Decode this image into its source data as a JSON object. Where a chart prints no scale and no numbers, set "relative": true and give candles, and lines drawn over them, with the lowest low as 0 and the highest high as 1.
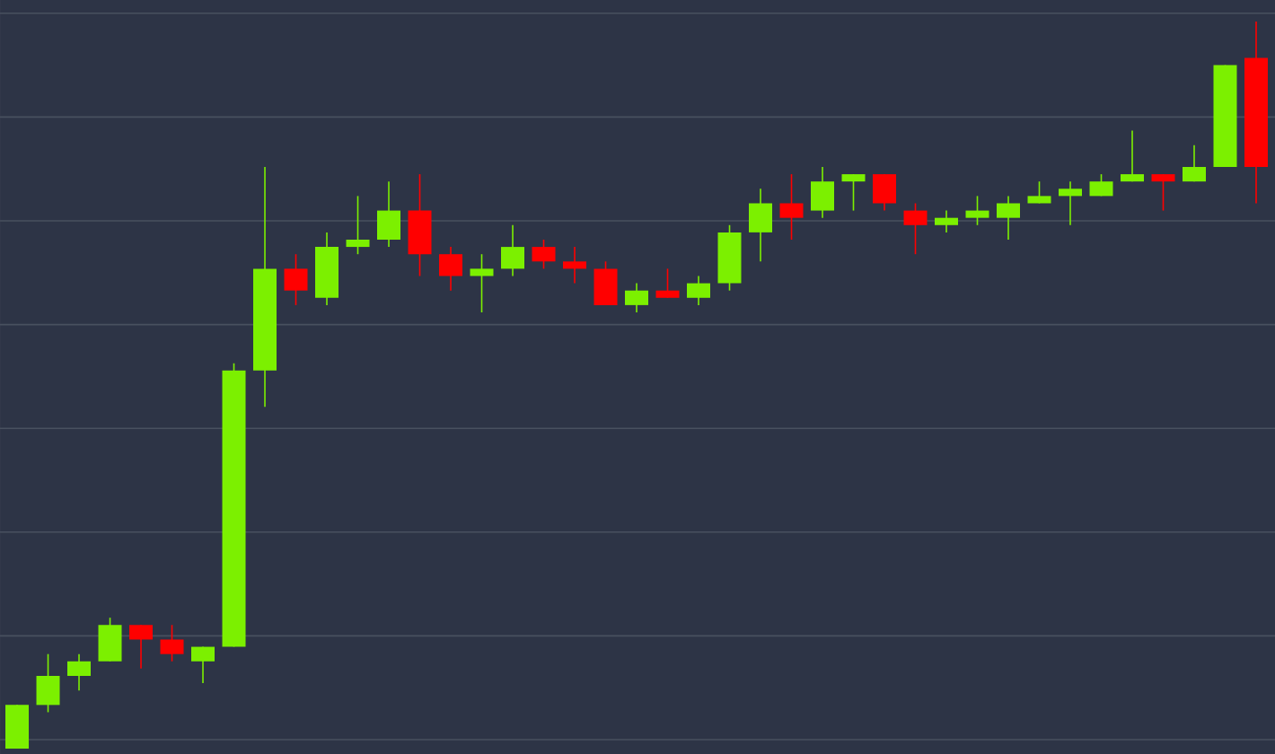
{
  "chart_data": {
    "type": "candlestick",
    "relative": true,
    "grid": "y",
    "categories": [
      null,
      null,
      null,
      null,
      null,
      null,
      null,
      null,
      null,
      null,
      null,
      null,
      null,
      null,
      null,
      null,
      null,
      null,
      null,
      null,
      null,
      null,
      null,
      null,
      null,
      null,
      null,
      null,
      null,
      null,
      null,
      null,
      null,
      null,
      null,
      null,
      null,
      null,
      null,
      null,
      null
    ],
    "ohlc": [
      [
        0.0,
        0.06,
        0.0,
        0.06
      ],
      [
        0.06,
        0.13,
        0.05,
        0.1
      ],
      [
        0.1,
        0.13,
        0.08,
        0.12
      ],
      [
        0.12,
        0.18,
        0.12,
        0.17
      ],
      [
        0.17,
        0.17,
        0.11,
        0.15
      ],
      [
        0.15,
        0.17,
        0.12,
        0.13
      ],
      [
        0.12,
        0.14,
        0.09,
        0.14
      ],
      [
        0.14,
        0.53,
        0.14,
        0.52
      ],
      [
        0.52,
        0.8,
        0.47,
        0.66
      ],
      [
        0.66,
        0.68,
        0.61,
        0.63
      ],
      [
        0.62,
        0.71,
        0.61,
        0.69
      ],
      [
        0.69,
        0.76,
        0.68,
        0.7
      ],
      [
        0.7,
        0.78,
        0.69,
        0.74
      ],
      [
        0.74,
        0.79,
        0.65,
        0.68
      ],
      [
        0.68,
        0.69,
        0.63,
        0.65
      ],
      [
        0.65,
        0.68,
        0.6,
        0.66
      ],
      [
        0.66,
        0.72,
        0.65,
        0.69
      ],
      [
        0.69,
        0.7,
        0.66,
        0.67
      ],
      [
        0.67,
        0.69,
        0.64,
        0.66
      ],
      [
        0.66,
        0.67,
        0.61,
        0.61
      ],
      [
        0.61,
        0.64,
        0.6,
        0.63
      ],
      [
        0.63,
        0.66,
        0.62,
        0.62
      ],
      [
        0.62,
        0.65,
        0.61,
        0.64
      ],
      [
        0.64,
        0.72,
        0.63,
        0.71
      ],
      [
        0.71,
        0.77,
        0.67,
        0.75
      ],
      [
        0.75,
        0.79,
        0.7,
        0.73
      ],
      [
        0.74,
        0.8,
        0.73,
        0.78
      ],
      [
        0.78,
        0.79,
        0.74,
        0.79
      ],
      [
        0.79,
        0.79,
        0.74,
        0.75
      ],
      [
        0.74,
        0.75,
        0.68,
        0.72
      ],
      [
        0.72,
        0.74,
        0.71,
        0.73
      ],
      [
        0.73,
        0.76,
        0.72,
        0.74
      ],
      [
        0.73,
        0.76,
        0.7,
        0.75
      ],
      [
        0.75,
        0.78,
        0.75,
        0.76
      ],
      [
        0.76,
        0.78,
        0.72,
        0.77
      ],
      [
        0.76,
        0.79,
        0.76,
        0.78
      ],
      [
        0.78,
        0.85,
        0.78,
        0.79
      ],
      [
        0.79,
        0.79,
        0.74,
        0.78
      ],
      [
        0.78,
        0.83,
        0.78,
        0.8
      ],
      [
        0.8,
        0.94,
        0.8,
        0.94
      ],
      [
        0.95,
        1.0,
        0.75,
        0.8
      ]
    ],
    "colors": [
      "#7cf000",
      "#7cf000",
      "#7cf000",
      "#7cf000",
      "#ff0000",
      "#ff0000",
      "#7cf000",
      "#7cf000",
      "#7cf000",
      "#ff0000",
      "#7cf000",
      "#7cf000",
      "#7cf000",
      "#ff0000",
      "#ff0000",
      "#7cf000",
      "#7cf000",
      "#ff0000",
      "#ff0000",
      "#ff0000",
      "#7cf000",
      "#ff0000",
      "#7cf000",
      "#7cf000",
      "#7cf000",
      "#ff0000",
      "#7cf000",
      "#7cf000",
      "#ff0000",
      "#ff0000",
      "#7cf000",
      "#7cf000",
      "#7cf000",
      "#7cf000",
      "#7cf000",
      "#7cf000",
      "#7cf000",
      "#ff0000",
      "#7cf000",
      "#7cf000",
      "#ff0000"
    ]
  }
}
